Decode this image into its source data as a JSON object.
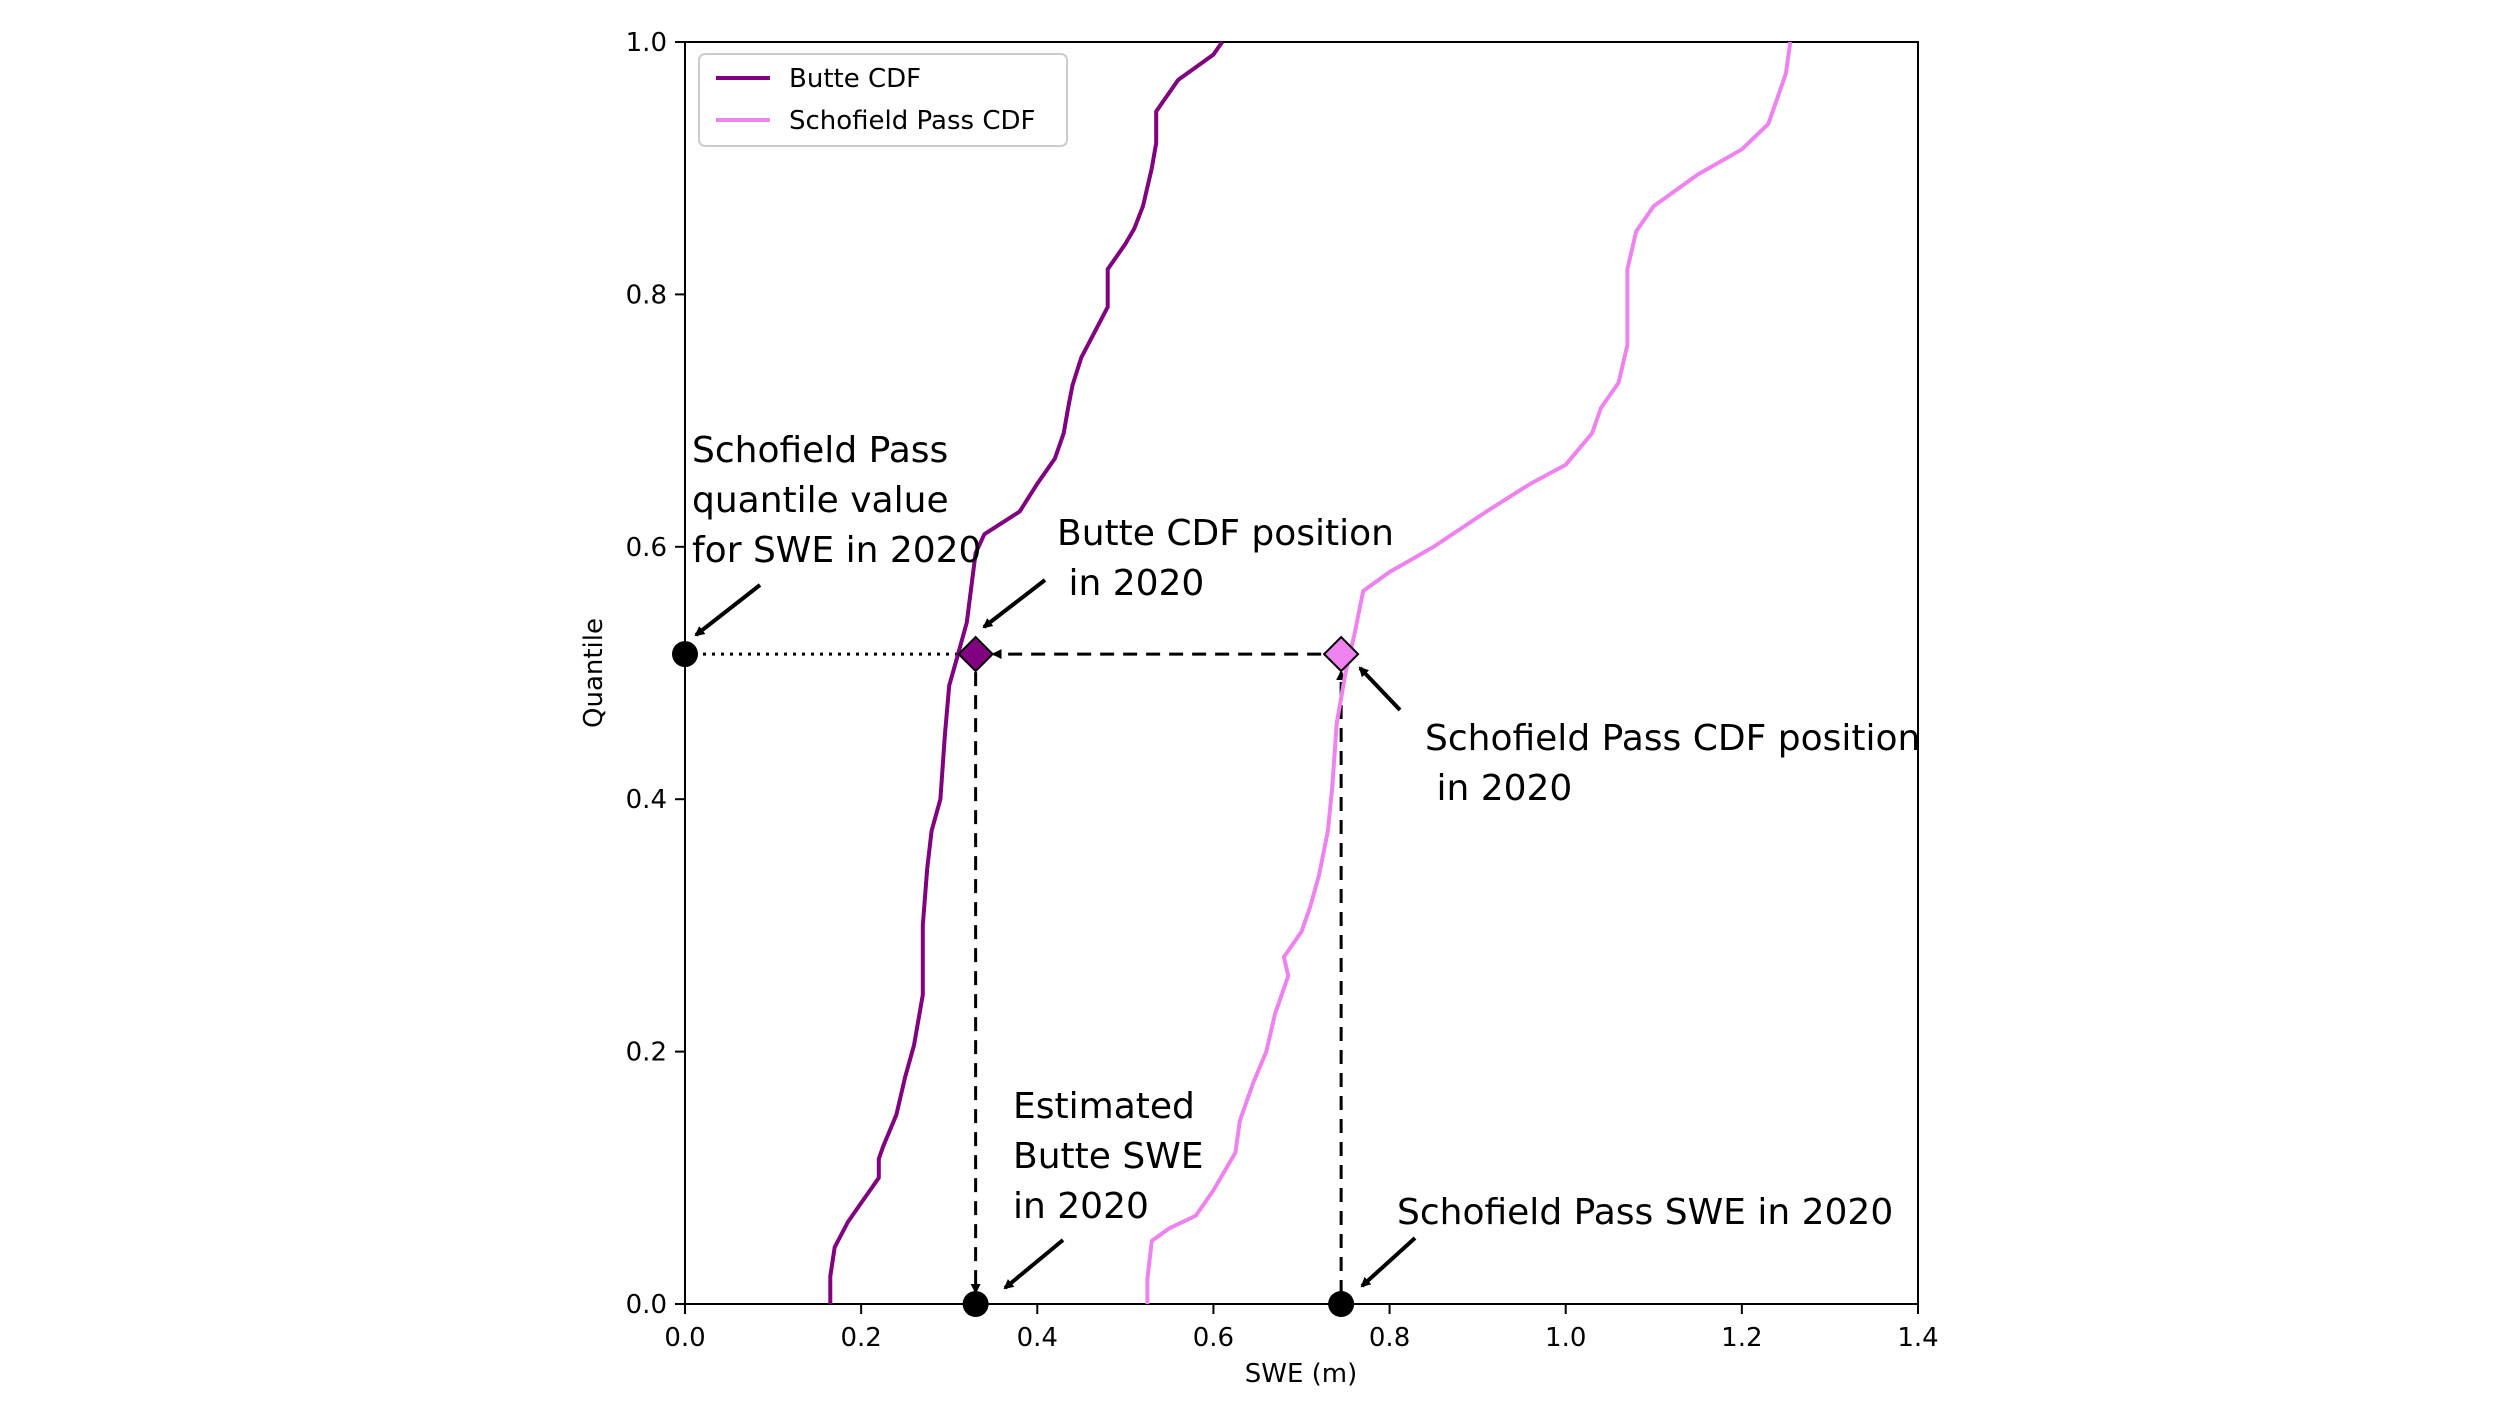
{
  "chart_data": {
    "type": "line",
    "title": "",
    "xlabel": "SWE (m)",
    "ylabel": "Quantile",
    "xlim": [
      0.0,
      1.4
    ],
    "ylim": [
      0.0,
      1.0
    ],
    "x_ticks": [
      "0.0",
      "0.2",
      "0.4",
      "0.6",
      "0.8",
      "1.0",
      "1.2",
      "1.4"
    ],
    "y_ticks": [
      "0.0",
      "0.2",
      "0.4",
      "0.6",
      "0.8",
      "1.0"
    ],
    "grid": false,
    "legend_position": "top-left",
    "series": [
      {
        "name": "Butte CDF",
        "color": "#800080",
        "points": [
          [
            0.165,
            0.0
          ],
          [
            0.165,
            0.022
          ],
          [
            0.17,
            0.045
          ],
          [
            0.185,
            0.065
          ],
          [
            0.2,
            0.08
          ],
          [
            0.21,
            0.09
          ],
          [
            0.22,
            0.1
          ],
          [
            0.22,
            0.115
          ],
          [
            0.225,
            0.125
          ],
          [
            0.24,
            0.15
          ],
          [
            0.25,
            0.18
          ],
          [
            0.26,
            0.205
          ],
          [
            0.27,
            0.245
          ],
          [
            0.27,
            0.3
          ],
          [
            0.275,
            0.345
          ],
          [
            0.28,
            0.375
          ],
          [
            0.29,
            0.4
          ],
          [
            0.295,
            0.45
          ],
          [
            0.3,
            0.49
          ],
          [
            0.308,
            0.51
          ],
          [
            0.32,
            0.54
          ],
          [
            0.33,
            0.595
          ],
          [
            0.34,
            0.61
          ],
          [
            0.38,
            0.628
          ],
          [
            0.4,
            0.65
          ],
          [
            0.42,
            0.67
          ],
          [
            0.43,
            0.69
          ],
          [
            0.435,
            0.71
          ],
          [
            0.44,
            0.728
          ],
          [
            0.45,
            0.75
          ],
          [
            0.465,
            0.77
          ],
          [
            0.48,
            0.79
          ],
          [
            0.48,
            0.82
          ],
          [
            0.5,
            0.84
          ],
          [
            0.51,
            0.852
          ],
          [
            0.52,
            0.87
          ],
          [
            0.53,
            0.9
          ],
          [
            0.535,
            0.92
          ],
          [
            0.535,
            0.945
          ],
          [
            0.56,
            0.97
          ],
          [
            0.6,
            0.99
          ],
          [
            0.61,
            1.0
          ]
        ]
      },
      {
        "name": "Schofield Pass CDF",
        "color": "#ee82ee",
        "points": [
          [
            0.525,
            0.0
          ],
          [
            0.525,
            0.02
          ],
          [
            0.53,
            0.05
          ],
          [
            0.55,
            0.06
          ],
          [
            0.58,
            0.07
          ],
          [
            0.6,
            0.09
          ],
          [
            0.625,
            0.12
          ],
          [
            0.63,
            0.145
          ],
          [
            0.645,
            0.175
          ],
          [
            0.66,
            0.2
          ],
          [
            0.67,
            0.23
          ],
          [
            0.685,
            0.26
          ],
          [
            0.68,
            0.275
          ],
          [
            0.7,
            0.295
          ],
          [
            0.71,
            0.315
          ],
          [
            0.72,
            0.34
          ],
          [
            0.73,
            0.375
          ],
          [
            0.735,
            0.41
          ],
          [
            0.74,
            0.46
          ],
          [
            0.745,
            0.48
          ],
          [
            0.75,
            0.5
          ],
          [
            0.76,
            0.53
          ],
          [
            0.77,
            0.565
          ],
          [
            0.8,
            0.58
          ],
          [
            0.85,
            0.6
          ],
          [
            0.91,
            0.628
          ],
          [
            0.96,
            0.65
          ],
          [
            1.0,
            0.665
          ],
          [
            1.03,
            0.69
          ],
          [
            1.04,
            0.71
          ],
          [
            1.06,
            0.73
          ],
          [
            1.07,
            0.76
          ],
          [
            1.07,
            0.79
          ],
          [
            1.07,
            0.82
          ],
          [
            1.08,
            0.85
          ],
          [
            1.1,
            0.87
          ],
          [
            1.15,
            0.895
          ],
          [
            1.2,
            0.915
          ],
          [
            1.23,
            0.935
          ],
          [
            1.24,
            0.955
          ],
          [
            1.25,
            0.975
          ],
          [
            1.255,
            1.0
          ]
        ]
      }
    ],
    "markers": [
      {
        "name": "Butte CDF position",
        "x": 0.33,
        "y": 0.515,
        "shape": "diamond",
        "color": "#800080"
      },
      {
        "name": "Schofield Pass CDF position",
        "x": 0.745,
        "y": 0.515,
        "shape": "diamond",
        "color": "#ee82ee"
      },
      {
        "name": "Schofield Pass quantile",
        "x": 0.0,
        "y": 0.515,
        "shape": "circle",
        "color": "#000000"
      },
      {
        "name": "Estimated Butte SWE",
        "x": 0.33,
        "y": 0.0,
        "shape": "circle",
        "color": "#000000"
      },
      {
        "name": "Schofield Pass SWE",
        "x": 0.745,
        "y": 0.0,
        "shape": "circle",
        "color": "#000000"
      }
    ],
    "annotations": [
      {
        "lines": [
          "Schofield Pass",
          "quantile value",
          "for SWE in 2020"
        ]
      },
      {
        "lines": [
          "Butte CDF position",
          " in 2020"
        ]
      },
      {
        "lines": [
          "Schofield Pass CDF position",
          " in 2020"
        ]
      },
      {
        "lines": [
          "Estimated",
          "Butte SWE",
          "in 2020"
        ]
      },
      {
        "lines": [
          "Schofield Pass SWE in 2020"
        ]
      }
    ]
  }
}
